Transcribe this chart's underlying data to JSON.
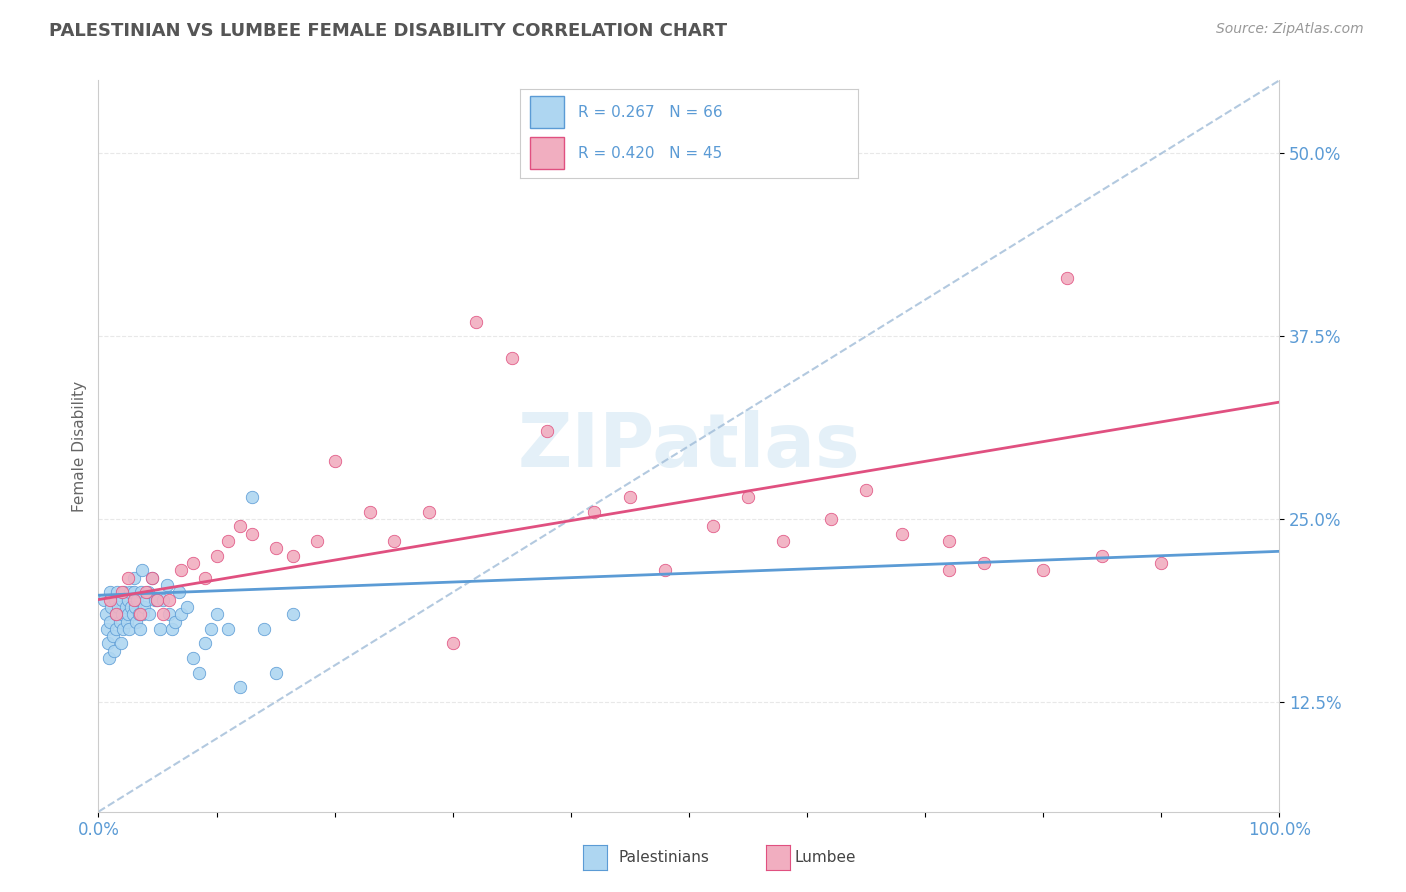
{
  "title": "PALESTINIAN VS LUMBEE FEMALE DISABILITY CORRELATION CHART",
  "source": "Source: ZipAtlas.com",
  "ylabel": "Female Disability",
  "y_ticks": [
    0.125,
    0.25,
    0.375,
    0.5
  ],
  "y_tick_labels": [
    "12.5%",
    "25.0%",
    "37.5%",
    "50.0%"
  ],
  "x_lim": [
    0.0,
    1.0
  ],
  "y_lim": [
    0.05,
    0.55
  ],
  "watermark": "ZIPatlas",
  "palestinian_color": "#aed6f1",
  "lumbee_color": "#f1aec0",
  "trend_blue": "#5b9bd5",
  "trend_pink": "#e05080",
  "dashed_line_color": "#a0bcd8",
  "background_color": "#ffffff",
  "plot_bg_color": "#ffffff",
  "grid_color": "#e8e8e8",
  "title_color": "#555555",
  "tick_label_color": "#5b9bd5",
  "palestinians_scatter_x": [
    0.005,
    0.006,
    0.007,
    0.008,
    0.009,
    0.01,
    0.01,
    0.011,
    0.012,
    0.013,
    0.014,
    0.015,
    0.015,
    0.016,
    0.017,
    0.018,
    0.019,
    0.02,
    0.02,
    0.021,
    0.022,
    0.023,
    0.024,
    0.025,
    0.025,
    0.026,
    0.027,
    0.028,
    0.029,
    0.03,
    0.03,
    0.031,
    0.032,
    0.033,
    0.034,
    0.035,
    0.036,
    0.037,
    0.038,
    0.039,
    0.04,
    0.042,
    0.043,
    0.045,
    0.048,
    0.05,
    0.052,
    0.055,
    0.058,
    0.06,
    0.062,
    0.065,
    0.068,
    0.07,
    0.075,
    0.08,
    0.085,
    0.09,
    0.095,
    0.1,
    0.11,
    0.12,
    0.13,
    0.14,
    0.15,
    0.165
  ],
  "palestinians_scatter_y": [
    0.195,
    0.185,
    0.175,
    0.165,
    0.155,
    0.2,
    0.18,
    0.19,
    0.17,
    0.16,
    0.195,
    0.185,
    0.175,
    0.2,
    0.19,
    0.18,
    0.165,
    0.195,
    0.185,
    0.175,
    0.2,
    0.19,
    0.18,
    0.195,
    0.185,
    0.175,
    0.2,
    0.19,
    0.185,
    0.2,
    0.21,
    0.19,
    0.18,
    0.195,
    0.185,
    0.175,
    0.2,
    0.215,
    0.185,
    0.19,
    0.195,
    0.2,
    0.185,
    0.21,
    0.195,
    0.195,
    0.175,
    0.195,
    0.205,
    0.185,
    0.175,
    0.18,
    0.2,
    0.185,
    0.19,
    0.155,
    0.145,
    0.165,
    0.175,
    0.185,
    0.175,
    0.135,
    0.265,
    0.175,
    0.145,
    0.185
  ],
  "lumbee_scatter_x": [
    0.01,
    0.015,
    0.02,
    0.025,
    0.03,
    0.035,
    0.04,
    0.045,
    0.05,
    0.055,
    0.06,
    0.07,
    0.08,
    0.09,
    0.1,
    0.11,
    0.12,
    0.13,
    0.15,
    0.165,
    0.185,
    0.2,
    0.23,
    0.25,
    0.28,
    0.32,
    0.35,
    0.38,
    0.42,
    0.45,
    0.48,
    0.52,
    0.55,
    0.58,
    0.62,
    0.65,
    0.68,
    0.72,
    0.75,
    0.8,
    0.85,
    0.9,
    0.82,
    0.72,
    0.3
  ],
  "lumbee_scatter_y": [
    0.195,
    0.185,
    0.2,
    0.21,
    0.195,
    0.185,
    0.2,
    0.21,
    0.195,
    0.185,
    0.195,
    0.215,
    0.22,
    0.21,
    0.225,
    0.235,
    0.245,
    0.24,
    0.23,
    0.225,
    0.235,
    0.29,
    0.255,
    0.235,
    0.255,
    0.385,
    0.36,
    0.31,
    0.255,
    0.265,
    0.215,
    0.245,
    0.265,
    0.235,
    0.25,
    0.27,
    0.24,
    0.235,
    0.22,
    0.215,
    0.225,
    0.22,
    0.415,
    0.215,
    0.165
  ],
  "blue_trend_x": [
    0.0,
    1.0
  ],
  "blue_trend_y": [
    0.198,
    0.228
  ],
  "pink_trend_x": [
    0.0,
    1.0
  ],
  "pink_trend_y": [
    0.195,
    0.33
  ],
  "diag_line_x": [
    0.0,
    1.0
  ],
  "diag_line_y": [
    0.05,
    0.55
  ]
}
